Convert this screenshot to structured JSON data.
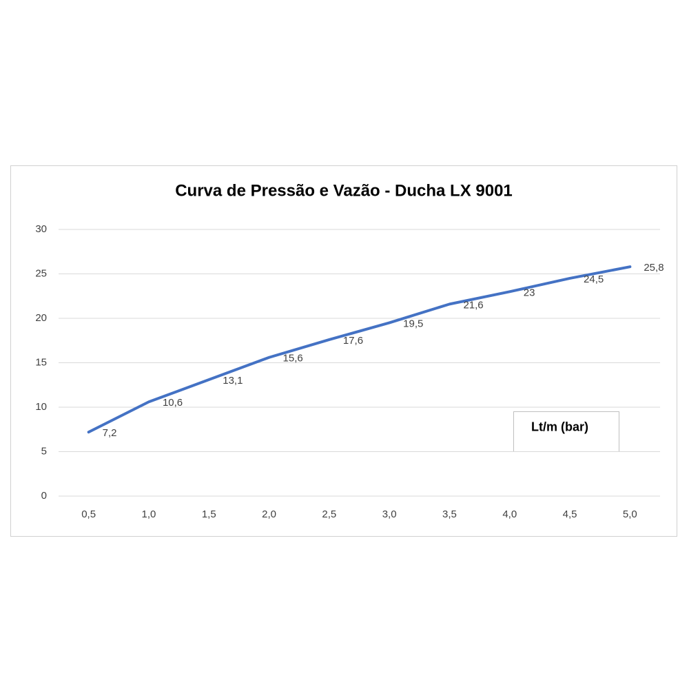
{
  "chart_data": {
    "type": "line",
    "title": "Curva de Pressão e Vazão - Ducha LX 9001",
    "categories": [
      "0,5",
      "1,0",
      "1,5",
      "2,0",
      "2,5",
      "3,0",
      "3,5",
      "4,0",
      "4,5",
      "5,0"
    ],
    "series": [
      {
        "name": "Lt/m (bar)",
        "color": "#4472c4",
        "values": [
          7.2,
          10.6,
          13.1,
          15.6,
          17.6,
          19.5,
          21.6,
          23,
          24.5,
          25.8
        ],
        "value_labels": [
          "7,2",
          "10,6",
          "13,1",
          "15,6",
          "17,6",
          "19,5",
          "21,6",
          "23",
          "24,5",
          "25,8"
        ]
      }
    ],
    "ylim": [
      0,
      30
    ],
    "yticks": [
      0,
      5,
      10,
      15,
      20,
      25,
      30
    ],
    "grid": true
  }
}
